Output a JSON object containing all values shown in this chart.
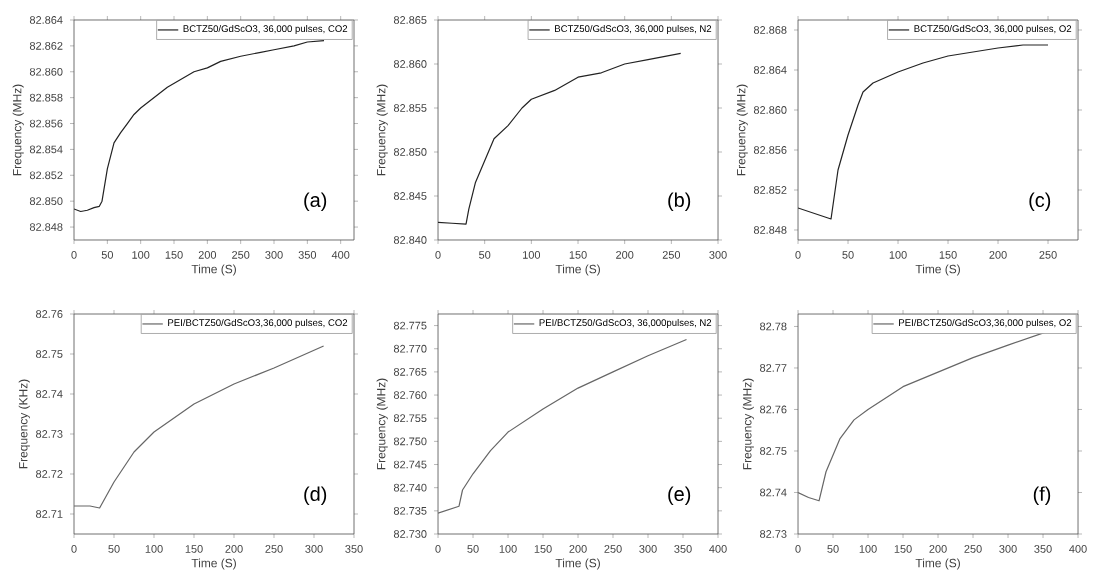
{
  "chart_data": [
    {
      "type": "line",
      "xlabel": "Time (S)",
      "ylabel": "Frequency (MHz)",
      "xlim": [
        0,
        420
      ],
      "ylim": [
        82.847,
        82.864
      ],
      "xticks": [
        0,
        50,
        100,
        150,
        200,
        250,
        300,
        350,
        400
      ],
      "yticks": [
        82.848,
        {
          "value": 82.85,
          "label": "82.850"
        },
        82.852,
        82.854,
        82.856,
        82.858,
        {
          "value": 82.86,
          "label": "82.860"
        },
        82.862,
        82.864
      ],
      "legend": "top right",
      "line_style": "solid",
      "annotations": [
        "(a)"
      ],
      "series": [
        {
          "name": "BCTZ50/GdScO3, 36,000 pulses, CO2",
          "color": "#222222",
          "x": [
            0,
            10,
            20,
            30,
            38,
            42,
            50,
            60,
            70,
            80,
            90,
            100,
            120,
            140,
            160,
            180,
            200,
            220,
            250,
            280,
            300,
            330,
            350,
            375
          ],
          "values": [
            82.8494,
            82.8492,
            82.8493,
            82.8495,
            82.8496,
            82.85,
            82.8525,
            82.8545,
            82.8553,
            82.856,
            82.8567,
            82.8572,
            82.858,
            82.8588,
            82.8594,
            82.86,
            82.8603,
            82.8608,
            82.8612,
            82.8615,
            82.8617,
            82.862,
            82.8623,
            82.8624
          ]
        }
      ]
    },
    {
      "type": "line",
      "xlabel": "Time (S)",
      "ylabel": "Frequency (MHz)",
      "xlim": [
        0,
        300
      ],
      "ylim": [
        82.84,
        82.865
      ],
      "xticks": [
        0,
        50,
        100,
        150,
        200,
        250,
        300
      ],
      "yticks": [
        {
          "value": 82.84,
          "label": "82.840"
        },
        82.845,
        {
          "value": 82.85,
          "label": "82.850"
        },
        82.855,
        {
          "value": 82.86,
          "label": "82.860"
        },
        82.865
      ],
      "legend": "top right",
      "line_style": "solid",
      "annotations": [
        "(b)"
      ],
      "series": [
        {
          "name": "BCTZ50/GdScO3, 36,000 pulses, N2",
          "color": "#222222",
          "x": [
            0,
            15,
            30,
            33,
            40,
            50,
            60,
            75,
            90,
            100,
            125,
            150,
            175,
            200,
            225,
            260
          ],
          "values": [
            82.842,
            82.8419,
            82.8418,
            82.8435,
            82.8465,
            82.849,
            82.8515,
            82.853,
            82.855,
            82.856,
            82.857,
            82.8585,
            82.859,
            82.86,
            82.8605,
            82.8612
          ]
        }
      ]
    },
    {
      "type": "line",
      "xlabel": "Time (S)",
      "ylabel": "Frequency (MHz)",
      "xlim": [
        0,
        280
      ],
      "ylim": [
        82.847,
        82.869
      ],
      "xticks": [
        0,
        50,
        100,
        150,
        200,
        250
      ],
      "yticks": [
        82.848,
        82.852,
        82.856,
        {
          "value": 82.86,
          "label": "82.860"
        },
        82.864,
        82.868
      ],
      "legend": "top right",
      "line_style": "solid",
      "annotations": [
        "(c)"
      ],
      "series": [
        {
          "name": "BCTZ50/GdScO3, 36,000 pulses, O2",
          "color": "#222222",
          "x": [
            0,
            15,
            33,
            40,
            50,
            60,
            65,
            75,
            100,
            125,
            150,
            175,
            200,
            225,
            250
          ],
          "values": [
            82.8502,
            82.8497,
            82.8491,
            82.854,
            82.8575,
            82.8605,
            82.8618,
            82.8627,
            82.8638,
            82.8647,
            82.8654,
            82.8658,
            82.8662,
            82.8665,
            82.8665
          ]
        }
      ]
    },
    {
      "type": "line",
      "xlabel": "Time (S)",
      "ylabel": "Frequency (KHz)",
      "xlim": [
        0,
        350
      ],
      "ylim": [
        82.705,
        82.76
      ],
      "xticks": [
        0,
        50,
        100,
        150,
        200,
        250,
        300,
        350
      ],
      "yticks": [
        82.71,
        82.72,
        82.73,
        82.74,
        82.75,
        82.76
      ],
      "legend": "top right",
      "line_style": "solid",
      "annotations": [
        "(d)"
      ],
      "series": [
        {
          "name": "PEI/BCTZ50/GdScO3,36,000 pulses, CO2",
          "color": "#666666",
          "x": [
            0,
            20,
            32,
            50,
            75,
            100,
            150,
            175,
            200,
            250,
            312
          ],
          "values": [
            82.712,
            82.712,
            82.7115,
            82.718,
            82.7255,
            82.7305,
            82.7375,
            82.74,
            82.7425,
            82.7465,
            82.752
          ]
        }
      ]
    },
    {
      "type": "line",
      "xlabel": "Time (S)",
      "ylabel": "Frequency (MHz)",
      "xlim": [
        0,
        400
      ],
      "ylim": [
        82.73,
        82.7775
      ],
      "xticks": [
        0,
        50,
        100,
        150,
        200,
        250,
        300,
        350,
        400
      ],
      "yticks": [
        {
          "value": 82.73,
          "label": "82.730"
        },
        82.735,
        {
          "value": 82.74,
          "label": "82.740"
        },
        82.745,
        {
          "value": 82.75,
          "label": "82.750"
        },
        82.755,
        {
          "value": 82.76,
          "label": "82.760"
        },
        82.765,
        {
          "value": 82.77,
          "label": "82.770"
        },
        82.775
      ],
      "legend": "top right",
      "line_style": "solid",
      "annotations": [
        "(e)"
      ],
      "series": [
        {
          "name": "PEI/BCTZ50/GdScO3, 36,000pulses, N2",
          "color": "#666666",
          "x": [
            0,
            30,
            35,
            50,
            75,
            100,
            150,
            200,
            250,
            300,
            355
          ],
          "values": [
            82.7345,
            82.736,
            82.7395,
            82.743,
            82.748,
            82.752,
            82.757,
            82.7615,
            82.765,
            82.7685,
            82.772
          ]
        }
      ]
    },
    {
      "type": "line",
      "xlabel": "Time (S)",
      "ylabel": "Frequency (MHz)",
      "xlim": [
        0,
        400
      ],
      "ylim": [
        82.73,
        82.783
      ],
      "xticks": [
        0,
        50,
        100,
        150,
        200,
        250,
        300,
        350,
        400
      ],
      "yticks": [
        82.73,
        82.74,
        82.75,
        82.76,
        82.77,
        82.78
      ],
      "legend": "top right",
      "line_style": "solid",
      "annotations": [
        "(f)"
      ],
      "series": [
        {
          "name": "PEI/BCTZ50/GdScO3,36,000 pulses, O2",
          "color": "#666666",
          "x": [
            0,
            15,
            30,
            40,
            60,
            80,
            100,
            150,
            200,
            250,
            300,
            360
          ],
          "values": [
            82.74,
            82.7388,
            82.738,
            82.745,
            82.753,
            82.7575,
            82.76,
            82.7655,
            82.769,
            82.7725,
            82.7755,
            82.779
          ]
        }
      ]
    }
  ]
}
